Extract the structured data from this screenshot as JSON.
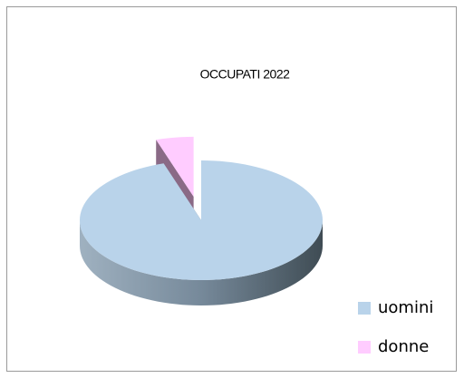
{
  "chart_data": {
    "type": "pie3d",
    "title": "OCCUPATI 2022",
    "categories": [
      "uomini",
      "donne"
    ],
    "values": [
      95,
      5
    ],
    "colors": [
      "#b9d3ea",
      "#ffccff"
    ],
    "side_colors": [
      "#55646e",
      "#8a6a86"
    ],
    "exploded": [
      false,
      true
    ],
    "legend": "bottom-right"
  }
}
